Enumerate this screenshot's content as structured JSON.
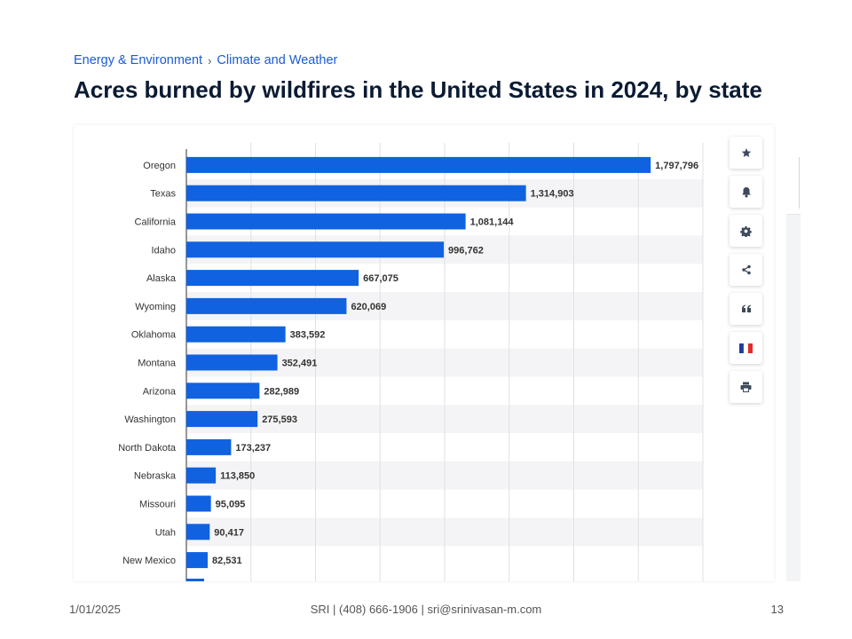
{
  "breadcrumb": {
    "item1": "Energy & Environment",
    "sep": "›",
    "item2": "Climate and Weather"
  },
  "title": "Acres burned by wildfires in the United States in 2024, by state",
  "tools": [
    {
      "icon": "star-icon"
    },
    {
      "icon": "bell-icon"
    },
    {
      "icon": "gear-icon"
    },
    {
      "icon": "share-icon"
    },
    {
      "icon": "quote-icon"
    },
    {
      "icon": "french-flag-icon"
    },
    {
      "icon": "print-icon"
    }
  ],
  "footer": {
    "date": "1/01/2025",
    "center": "SRI | (408) 666-1906 | sri@srinivasan-m.com",
    "page": "13"
  },
  "colors": {
    "bar": "#1062e0",
    "link": "#1a5ad6",
    "title": "#0b1b33"
  },
  "chart_data": {
    "type": "bar",
    "orientation": "horizontal",
    "categories": [
      "Oregon",
      "Texas",
      "California",
      "Idaho",
      "Alaska",
      "Wyoming",
      "Oklahoma",
      "Montana",
      "Arizona",
      "Washington",
      "North Dakota",
      "Nebraska",
      "Missouri",
      "Utah",
      "New Mexico"
    ],
    "values": [
      1797796,
      1314903,
      1081144,
      996762,
      667075,
      620069,
      383592,
      352491,
      282989,
      275593,
      173237,
      113850,
      95095,
      90417,
      82531
    ],
    "value_labels": [
      "1,797,796",
      "1,314,903",
      "1,081,144",
      "996,762",
      "667,075",
      "620,069",
      "383,592",
      "352,491",
      "282,989",
      "275,593",
      "173,237",
      "113,850",
      "95,095",
      "90,417",
      "82,531"
    ],
    "xlim": [
      0,
      2000000
    ],
    "grid": true,
    "data_labels": true
  }
}
